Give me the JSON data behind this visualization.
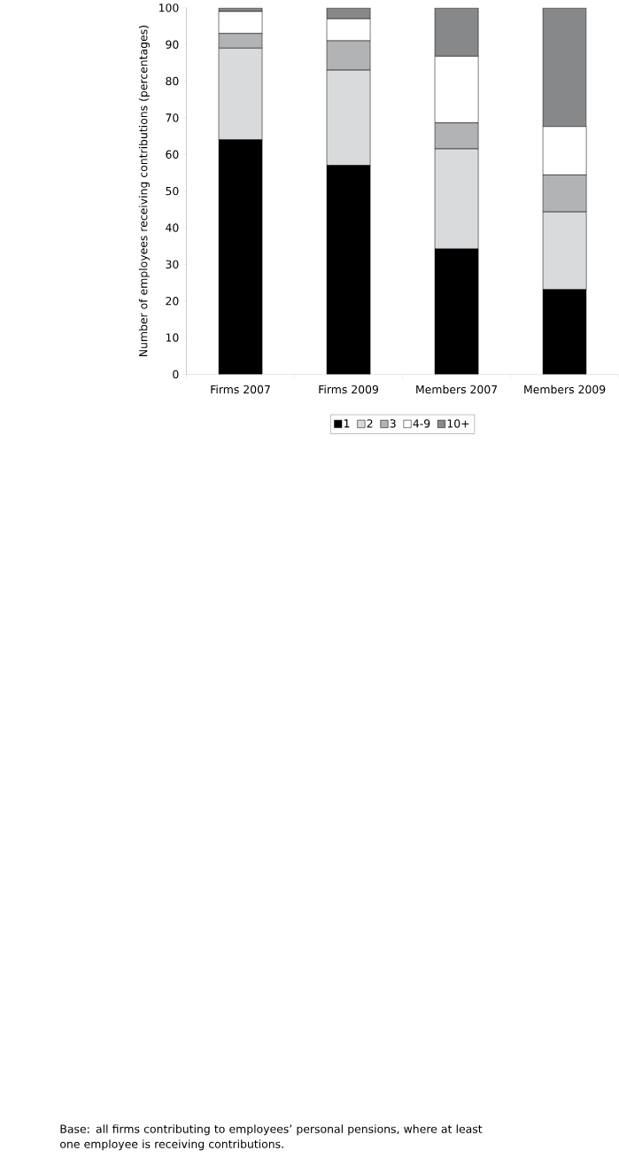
{
  "chart_data": {
    "type": "bar",
    "stacked": true,
    "categories": [
      "Firms 2007",
      "Firms 2009",
      "Members 2007",
      "Members 2009"
    ],
    "ylabel": "Number of employees receiving contributions (percentages)",
    "ylim": [
      0,
      100
    ],
    "yticks": [
      0,
      10,
      20,
      30,
      40,
      50,
      60,
      70,
      80,
      90,
      100
    ],
    "series": [
      {
        "name": "1",
        "color": "#000000",
        "values": [
          64,
          57,
          34.2,
          23.1
        ]
      },
      {
        "name": "2",
        "color": "#d9dadc",
        "values": [
          25,
          26,
          27.3,
          21.2
        ]
      },
      {
        "name": "3",
        "color": "#b2b3b5",
        "values": [
          4,
          8,
          7.1,
          10.1
        ]
      },
      {
        "name": "4-9",
        "color": "#ffffff",
        "values": [
          6,
          6,
          18.2,
          13.2
        ]
      },
      {
        "name": "10+",
        "color": "#87888a",
        "values": [
          1,
          3,
          13.2,
          32.4
        ]
      }
    ],
    "legend": "bottom",
    "grid": false,
    "annotations": [
      "Base: all firms contributing to employees’ personal pensions, where at least one employee is receiving contributions."
    ]
  }
}
